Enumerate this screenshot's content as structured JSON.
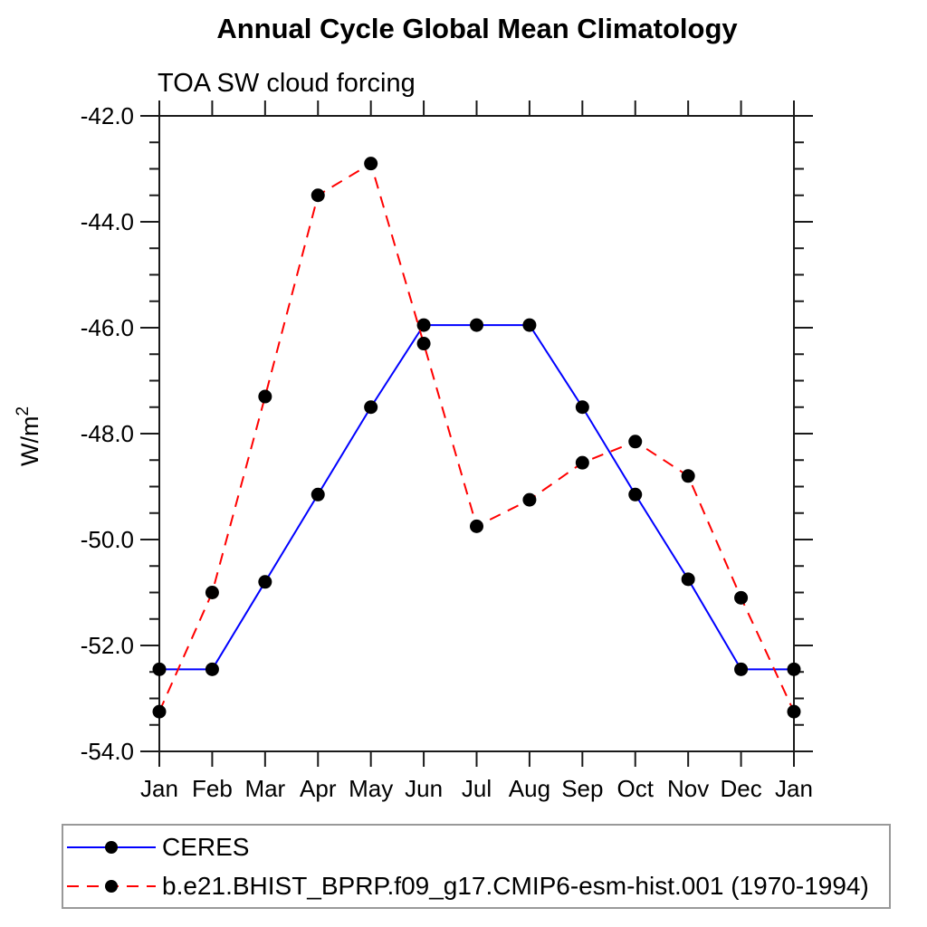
{
  "chart_data": {
    "type": "line",
    "title": "Annual Cycle Global Mean Climatology",
    "subtitle": "TOA SW cloud forcing",
    "ylabel_base": "W/m",
    "ylabel_exponent": "2",
    "x_categories": [
      "Jan",
      "Feb",
      "Mar",
      "Apr",
      "May",
      "Jun",
      "Jul",
      "Aug",
      "Sep",
      "Oct",
      "Nov",
      "Dec",
      "Jan"
    ],
    "ylim": [
      -54.0,
      -42.0
    ],
    "y_major_tick_labels": [
      "-42.0",
      "-44.0",
      "-46.0",
      "-48.0",
      "-50.0",
      "-52.0",
      "-54.0"
    ],
    "y_major_step": 2.0,
    "y_minor_step": 0.5,
    "grid": false,
    "legend_position": "bottom-left",
    "axis_color": "#1a1a1a",
    "marker_color": "#000000",
    "series": [
      {
        "name": "CERES",
        "color": "#0000ff",
        "line_style": "solid",
        "marker": "filled-circle",
        "values": [
          -52.45,
          -52.45,
          -50.8,
          -49.15,
          -47.5,
          -45.95,
          -45.95,
          -45.95,
          -47.5,
          -49.15,
          -50.75,
          -52.45,
          -52.45
        ]
      },
      {
        "name": "b.e21.BHIST_BPRP.f09_g17.CMIP6-esm-hist.001 (1970-1994)",
        "color": "#ff0000",
        "line_style": "dashed",
        "marker": "filled-circle",
        "values": [
          -53.25,
          -51.0,
          -47.3,
          -43.5,
          -42.9,
          -46.3,
          -49.75,
          -49.25,
          -48.55,
          -48.15,
          -48.8,
          -51.1,
          -53.25
        ]
      }
    ]
  }
}
